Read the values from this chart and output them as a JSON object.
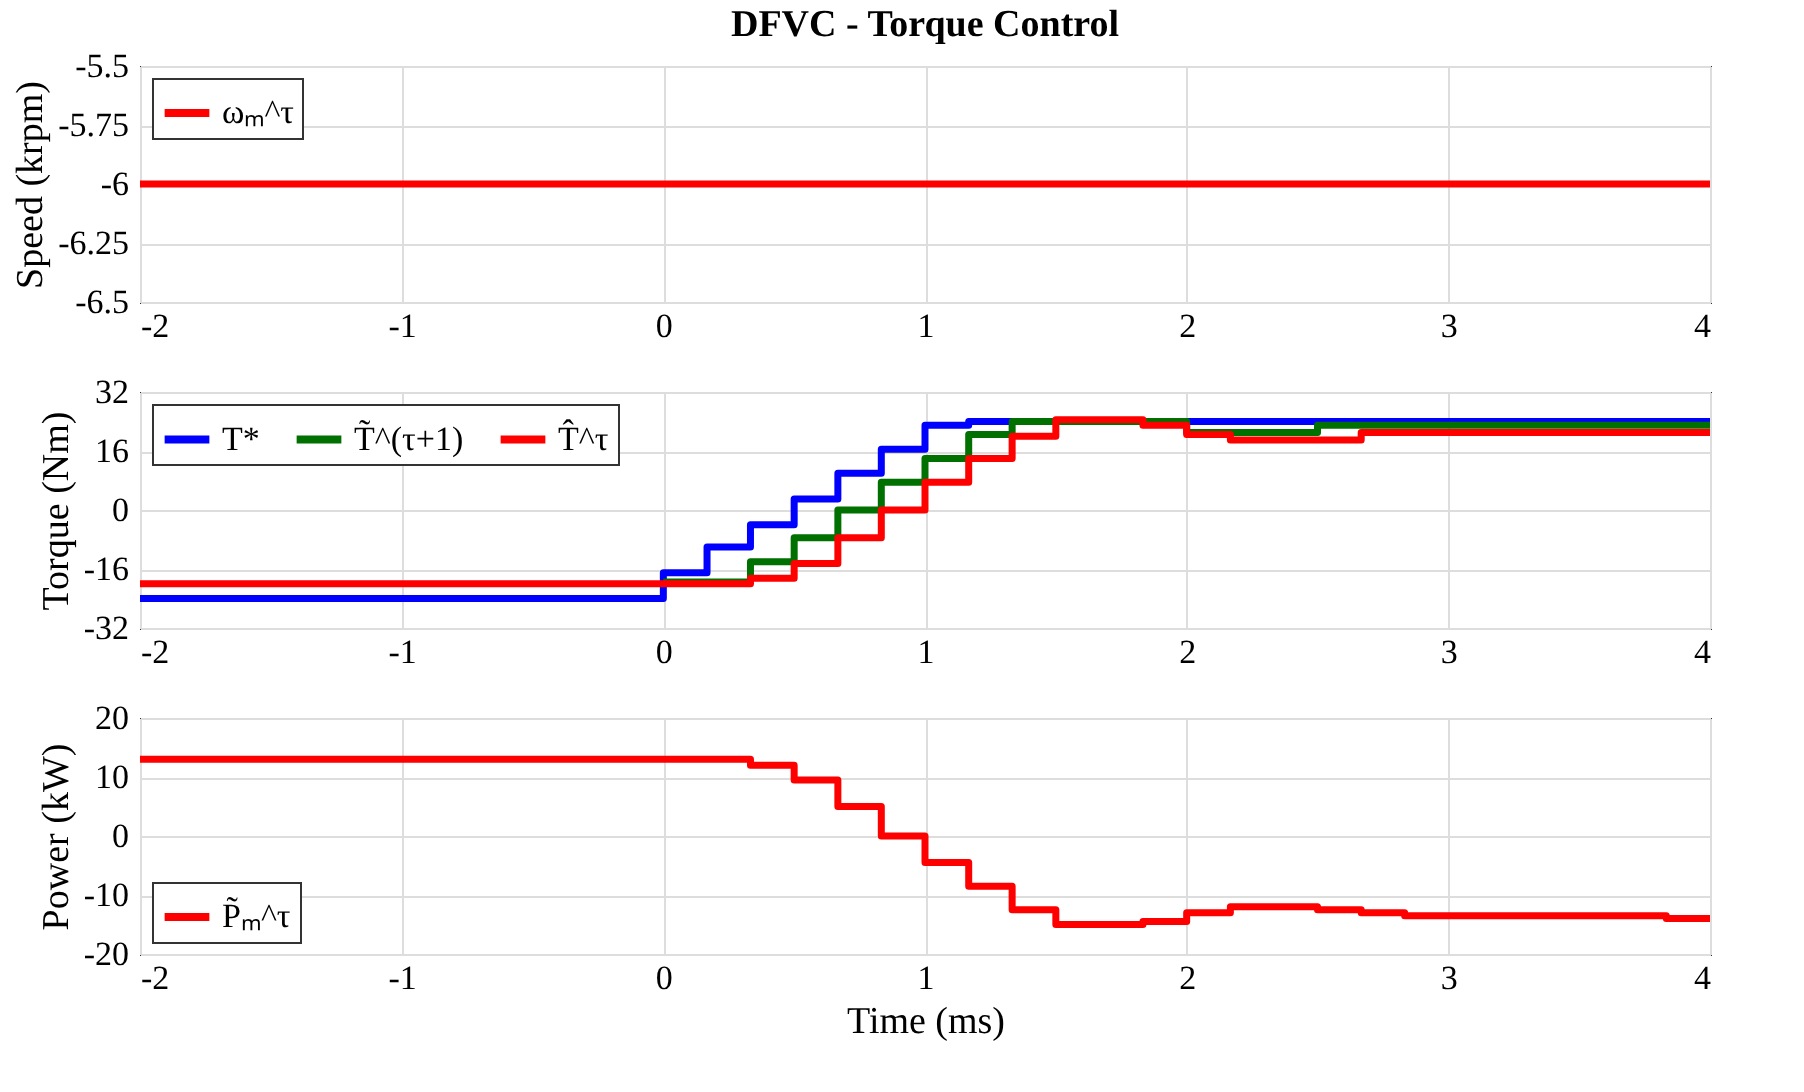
{
  "chart_data": [
    {
      "type": "step",
      "title": "DFVC - Torque Control",
      "ylabel": "Speed (krpm)",
      "ylim": [
        -6.5,
        -5.5
      ],
      "yticks": [
        -6.5,
        -6.25,
        -6,
        -5.75,
        -5.5
      ],
      "xlim": [
        -2,
        4
      ],
      "xticks": [
        -2,
        -1,
        0,
        1,
        2,
        3,
        4
      ],
      "grid": true,
      "legend": "top left",
      "line_style": "solid",
      "marker": "none",
      "series": [
        {
          "name": "ωₘ^τ",
          "color": "#ff0000",
          "x": [
            -2,
            4
          ],
          "values": [
            -6,
            -6
          ]
        }
      ]
    },
    {
      "type": "step",
      "ylabel": "Torque (Nm)",
      "ylim": [
        -32,
        32
      ],
      "yticks": [
        -32,
        -16,
        0,
        16,
        32
      ],
      "xlim": [
        -2,
        4
      ],
      "xticks": [
        -2,
        -1,
        0,
        1,
        2,
        3,
        4
      ],
      "grid": true,
      "legend": "top left",
      "line_style": "solid",
      "marker": "none",
      "series": [
        {
          "name": "T*",
          "color": "#0000ff",
          "x": [
            -2,
            0,
            0.167,
            0.333,
            0.5,
            0.667,
            0.833,
            1.0,
            1.167,
            4
          ],
          "values": [
            -24,
            -17,
            -10,
            -4,
            3,
            10,
            16.5,
            23,
            24,
            24
          ]
        },
        {
          "name": "T̃^(τ+1)",
          "color": "#007000",
          "x": [
            0,
            0.333,
            0.5,
            0.667,
            0.833,
            1.0,
            1.167,
            1.333,
            2.0,
            2.5,
            4
          ],
          "values": [
            -19.5,
            -14,
            -7.5,
            0,
            7.5,
            14,
            20.5,
            24,
            21,
            23,
            23
          ]
        },
        {
          "name": "T̂^τ",
          "color": "#ff0000",
          "x": [
            -2,
            0.333,
            0.5,
            0.667,
            0.833,
            1.0,
            1.167,
            1.333,
            1.5,
            1.833,
            2.0,
            2.167,
            2.667,
            4
          ],
          "values": [
            -20,
            -18.5,
            -14.5,
            -7.5,
            0,
            7.5,
            14,
            20,
            24.5,
            23,
            20.5,
            19,
            21,
            22
          ]
        }
      ]
    },
    {
      "type": "step",
      "ylabel": "Power (kW)",
      "xlabel": "Time (ms)",
      "ylim": [
        -20,
        20
      ],
      "yticks": [
        -20,
        -10,
        0,
        10,
        20
      ],
      "xlim": [
        -2,
        4
      ],
      "xticks": [
        -2,
        -1,
        0,
        1,
        2,
        3,
        4
      ],
      "grid": true,
      "legend": "bottom left",
      "line_style": "solid",
      "marker": "none",
      "series": [
        {
          "name": "P̃ₘ^τ",
          "color": "#ff0000",
          "x": [
            -2,
            0.333,
            0.5,
            0.667,
            0.833,
            1.0,
            1.167,
            1.333,
            1.5,
            1.833,
            2.0,
            2.167,
            2.5,
            2.667,
            2.833,
            3.833,
            4
          ],
          "values": [
            13,
            12,
            9.5,
            5,
            0,
            -4.5,
            -8.5,
            -12.5,
            -15,
            -14.5,
            -13,
            -12,
            -12.5,
            -13,
            -13.5,
            -14,
            -14
          ]
        }
      ]
    }
  ]
}
